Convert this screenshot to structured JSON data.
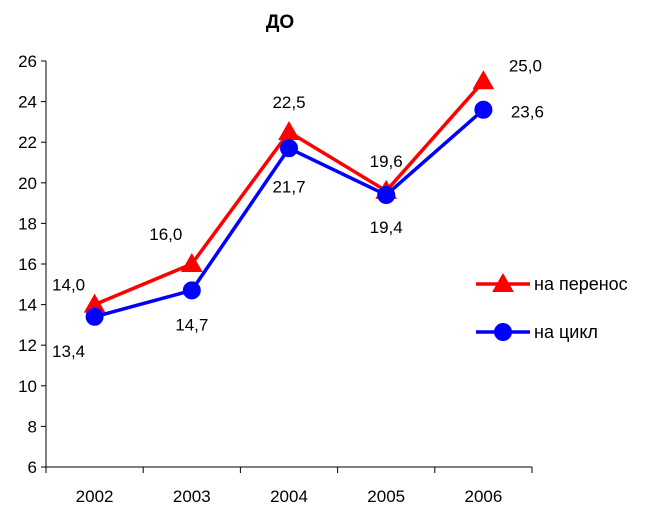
{
  "chart_data": {
    "type": "line",
    "title": "ДО",
    "xlabel": "",
    "ylabel": "",
    "categories": [
      "2002",
      "2003",
      "2004",
      "2005",
      "2006"
    ],
    "ylim": [
      6,
      26
    ],
    "yticks": [
      6,
      8,
      10,
      12,
      14,
      16,
      18,
      20,
      22,
      24,
      26
    ],
    "grid": false,
    "legend_position": "right",
    "series": [
      {
        "name": "на перенос",
        "values": [
          14.0,
          16.0,
          22.5,
          19.6,
          25.0
        ],
        "labels": [
          "14,0",
          "16,0",
          "22,5",
          "19,6",
          "25,0"
        ],
        "color": "#ff0000",
        "marker": "triangle"
      },
      {
        "name": "на цикл",
        "values": [
          13.4,
          14.7,
          21.7,
          19.4,
          23.6
        ],
        "labels": [
          "13,4",
          "14,7",
          "21,7",
          "19,4",
          "23,6"
        ],
        "color": "#0000ff",
        "marker": "circle"
      }
    ]
  }
}
